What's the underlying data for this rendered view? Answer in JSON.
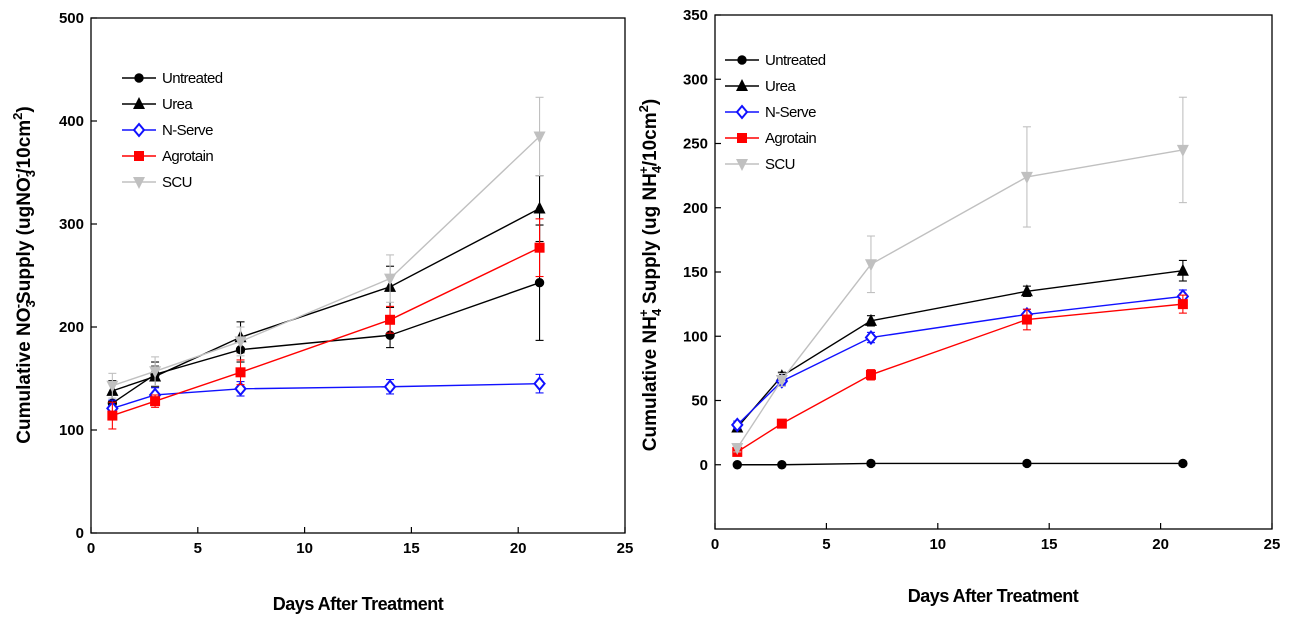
{
  "chart_data": [
    {
      "type": "line",
      "ylabel_parts": [
        "Cumulative NO",
        "3",
        "-",
        "Supply (ugNO",
        "3",
        "-",
        "/10cm",
        "2",
        ")"
      ],
      "xlabel": "Days After Treatment",
      "xlim": [
        0,
        25
      ],
      "ylim": [
        0,
        500
      ],
      "x_ticks": [
        0,
        5,
        10,
        15,
        20,
        25
      ],
      "x_tick_labels": [
        "0",
        "5",
        "10",
        "15",
        "20",
        "25"
      ],
      "y_ticks": [
        0,
        100,
        200,
        300,
        400,
        500
      ],
      "y_tick_labels": [
        "0",
        "100",
        "200",
        "300",
        "400",
        "500"
      ],
      "legend_position": "top-left",
      "grid": false,
      "series": [
        {
          "name": "Untreated",
          "color": "#000000",
          "marker": "circle",
          "x": [
            1,
            3,
            7,
            14,
            21
          ],
          "y": [
            126,
            154,
            178,
            192,
            243
          ],
          "err": [
            10,
            12,
            12,
            12,
            56
          ]
        },
        {
          "name": "Urea",
          "color": "#000000",
          "marker": "triangle-up",
          "x": [
            1,
            3,
            7,
            14,
            21
          ],
          "y": [
            138,
            152,
            190,
            239,
            315
          ],
          "err": [
            10,
            10,
            15,
            20,
            32
          ]
        },
        {
          "name": "N-Serve",
          "color": "#1111ff",
          "marker": "diamond-open",
          "x": [
            1,
            3,
            7,
            14,
            21
          ],
          "y": [
            121,
            134,
            140,
            142,
            145
          ],
          "err": [
            8,
            7,
            7,
            7,
            9
          ]
        },
        {
          "name": "Agrotain",
          "color": "#ff0000",
          "marker": "square",
          "x": [
            1,
            3,
            7,
            14,
            21
          ],
          "y": [
            114,
            128,
            156,
            207,
            277
          ],
          "err": [
            13,
            6,
            12,
            13,
            28
          ]
        },
        {
          "name": "SCU",
          "color": "#c0c0c0",
          "marker": "triangle-down",
          "x": [
            1,
            3,
            7,
            14,
            21
          ],
          "y": [
            143,
            157,
            186,
            247,
            385
          ],
          "err": [
            12,
            14,
            14,
            23,
            38
          ]
        }
      ]
    },
    {
      "type": "line",
      "ylabel_parts": [
        "Cumulative NH",
        "4",
        "+",
        " Supply (ug NH",
        "4",
        "+",
        "/10cm",
        "2",
        ")"
      ],
      "xlabel": "Days After Treatment",
      "xlim": [
        0,
        25
      ],
      "ylim": [
        -50,
        350
      ],
      "x_ticks": [
        0,
        5,
        10,
        15,
        20,
        25
      ],
      "x_tick_labels": [
        "0",
        "5",
        "10",
        "15",
        "20",
        "25"
      ],
      "y_ticks": [
        0,
        50,
        100,
        150,
        200,
        250,
        300,
        350
      ],
      "y_tick_labels": [
        "0",
        "50",
        "100",
        "150",
        "200",
        "250",
        "300",
        "350"
      ],
      "legend_position": "top-left",
      "grid": false,
      "series": [
        {
          "name": "Untreated",
          "color": "#000000",
          "marker": "circle",
          "x": [
            1,
            3,
            7,
            14,
            21
          ],
          "y": [
            0,
            0,
            1,
            1,
            1
          ],
          "err": [
            0,
            0,
            0,
            0,
            0
          ]
        },
        {
          "name": "Urea",
          "color": "#000000",
          "marker": "triangle-up",
          "x": [
            1,
            3,
            7,
            14,
            21
          ],
          "y": [
            29,
            69,
            112,
            135,
            151
          ],
          "err": [
            3,
            3,
            4,
            4,
            8
          ]
        },
        {
          "name": "N-Serve",
          "color": "#1111ff",
          "marker": "diamond-open",
          "x": [
            1,
            3,
            7,
            14,
            21
          ],
          "y": [
            31,
            65,
            99,
            117,
            131
          ],
          "err": [
            3,
            3,
            4,
            4,
            5
          ]
        },
        {
          "name": "Agrotain",
          "color": "#ff0000",
          "marker": "square",
          "x": [
            1,
            3,
            7,
            14,
            21
          ],
          "y": [
            10,
            32,
            70,
            113,
            125
          ],
          "err": [
            2,
            3,
            4,
            8,
            7
          ]
        },
        {
          "name": "SCU",
          "color": "#c0c0c0",
          "marker": "triangle-down",
          "x": [
            1,
            3,
            7,
            14,
            21
          ],
          "y": [
            13,
            66,
            156,
            224,
            245
          ],
          "err": [
            3,
            5,
            22,
            39,
            41
          ]
        }
      ]
    }
  ]
}
